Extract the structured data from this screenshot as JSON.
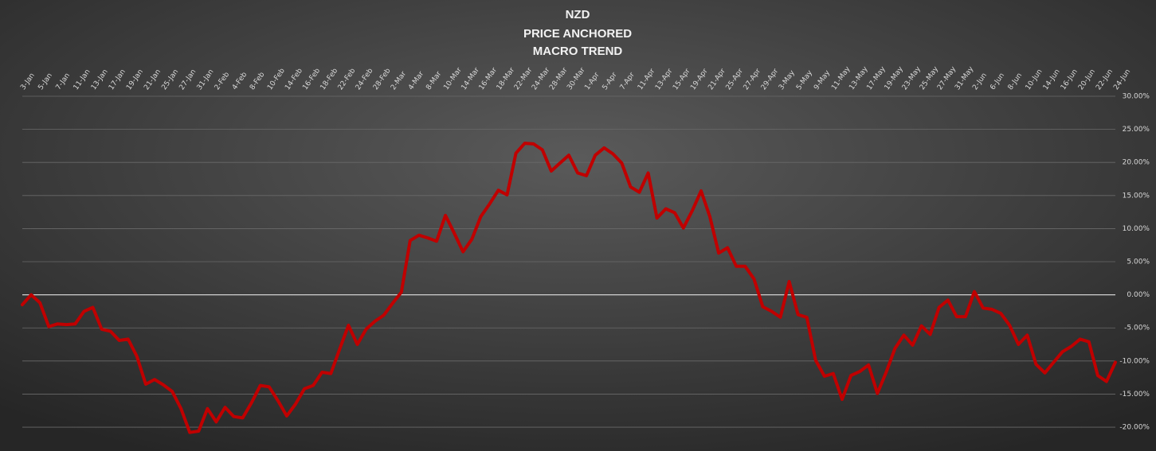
{
  "chart_data": {
    "type": "line",
    "title": [
      "NZD",
      "PRICE ANCHORED",
      "MACRO TREND"
    ],
    "categories": [
      "3-Jan",
      null,
      "5-Jan",
      null,
      "7-Jan",
      null,
      "11-Jan",
      null,
      "13-Jan",
      null,
      "17-Jan",
      null,
      "19-Jan",
      null,
      "21-Jan",
      null,
      "25-Jan",
      null,
      "27-Jan",
      null,
      "31-Jan",
      null,
      "2-Feb",
      null,
      "4-Feb",
      null,
      "8-Feb",
      null,
      "10-Feb",
      null,
      "14-Feb",
      null,
      "16-Feb",
      null,
      "18-Feb",
      null,
      "22-Feb",
      null,
      "24-Feb",
      null,
      "28-Feb",
      null,
      "2-Mar",
      null,
      "4-Mar",
      null,
      "8-Mar",
      null,
      "10-Mar",
      null,
      "14-Mar",
      null,
      "16-Mar",
      null,
      "18-Mar",
      null,
      "22-Mar",
      null,
      "24-Mar",
      null,
      "28-Mar",
      null,
      "30-Mar",
      null,
      "1-Apr",
      null,
      "5-Apr",
      null,
      "7-Apr",
      null,
      "11-Apr",
      null,
      "13-Apr",
      null,
      "15-Apr",
      null,
      "19-Apr",
      null,
      "21-Apr",
      null,
      "25-Apr",
      null,
      "27-Apr",
      null,
      "29-Apr",
      null,
      "3-May",
      null,
      "5-May",
      null,
      "9-May",
      null,
      "11-May",
      null,
      "13-May",
      null,
      "17-May",
      null,
      "19-May",
      null,
      "23-May",
      null,
      "25-May",
      null,
      "27-May",
      null,
      "31-May",
      null,
      "2-Jun",
      null,
      "6-Jun",
      null,
      "8-Jun",
      null,
      "10-Jun",
      null,
      "14-Jun",
      null,
      "16-Jun",
      null,
      "20-Jun",
      null,
      "22-Jun",
      null,
      "24-Jun"
    ],
    "series": [
      {
        "color": "#c00000",
        "values": [
          -1.5,
          0,
          -1.2,
          -4.8,
          -4.4,
          -4.5,
          -4.4,
          -2.5,
          -1.9,
          -5.2,
          -5.5,
          -6.9,
          -6.7,
          -9.3,
          -13.5,
          -12.8,
          -13.6,
          -14.6,
          -17.2,
          -20.8,
          -20.6,
          -17.2,
          -19.2,
          -17.0,
          -18.4,
          -18.6,
          -16.3,
          -13.7,
          -13.9,
          -16.0,
          -18.3,
          -16.5,
          -14.2,
          -13.7,
          -11.7,
          -11.9,
          -8.2,
          -4.6,
          -7.5,
          -5.2,
          -4.0,
          -3.1,
          -1.3,
          0.4,
          8.2,
          9.0,
          8.6,
          8.1,
          12.0,
          9.3,
          6.5,
          8.4,
          11.8,
          13.7,
          15.8,
          15.1,
          21.4,
          22.9,
          22.8,
          21.9,
          18.7,
          19.9,
          21.1,
          18.4,
          18.0,
          21.1,
          22.2,
          21.3,
          19.9,
          16.3,
          15.5,
          18.4,
          11.6,
          13.0,
          12.4,
          10.1,
          12.7,
          15.7,
          11.8,
          6.3,
          7.1,
          4.3,
          4.3,
          2.4,
          -1.8,
          -2.5,
          -3.4,
          2.0,
          -3.0,
          -3.4,
          -9.9,
          -12.3,
          -11.9,
          -15.8,
          -12.2,
          -11.6,
          -10.6,
          -14.9,
          -11.7,
          -8.1,
          -6.1,
          -7.6,
          -4.7,
          -6.0,
          -1.9,
          -0.8,
          -3.3,
          -3.3,
          0.5,
          -2.0,
          -2.2,
          -2.8,
          -4.6,
          -7.5,
          -6.1,
          -10.5,
          -11.8,
          -10.2,
          -8.6,
          -7.8,
          -6.7,
          -7.1,
          -12.2,
          -13.1,
          -10.2
        ]
      }
    ],
    "ylim": [
      -23,
      30
    ],
    "yticks": [
      {
        "value": -20,
        "label": "-20.00%"
      },
      {
        "value": -15,
        "label": "-15.00%"
      },
      {
        "value": -10,
        "label": "-10.00%"
      },
      {
        "value": -5,
        "label": "-5.00%"
      },
      {
        "value": 0,
        "label": "0.00%"
      },
      {
        "value": 5,
        "label": "5.00%"
      },
      {
        "value": 10,
        "label": "10.00%"
      },
      {
        "value": 15,
        "label": "15.00%"
      },
      {
        "value": 20,
        "label": "20.00%"
      },
      {
        "value": 25,
        "label": "25.00%"
      },
      {
        "value": 30,
        "label": "30.00%"
      }
    ],
    "grid": true
  }
}
